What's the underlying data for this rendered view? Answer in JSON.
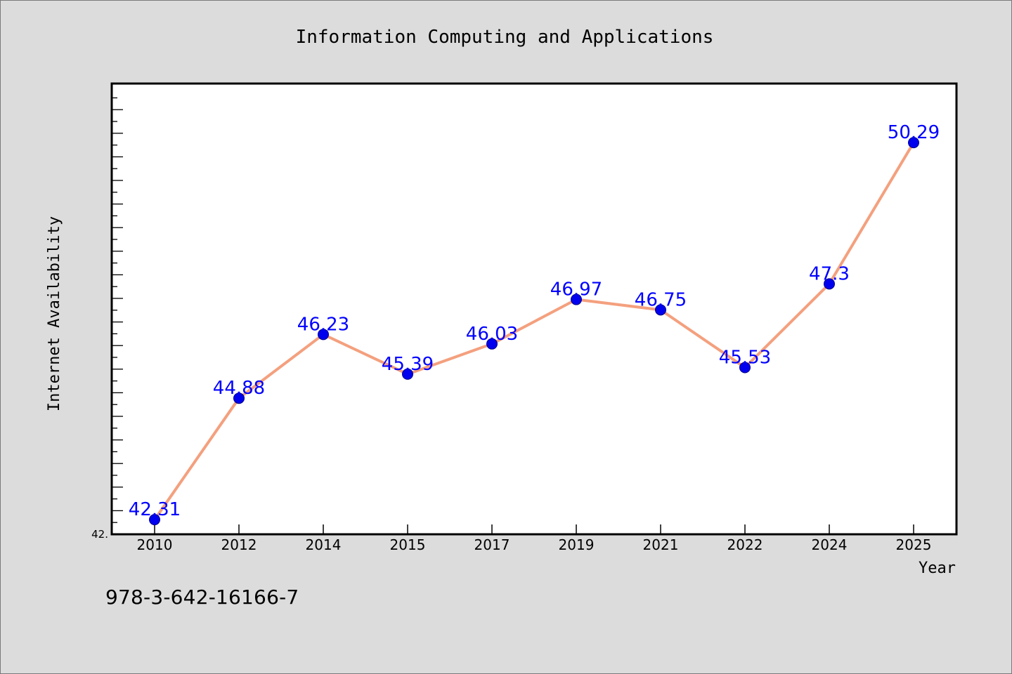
{
  "chart_data": {
    "type": "line",
    "title": "Information Computing and Applications",
    "xlabel": "Year",
    "ylabel": "Internet Availability",
    "categories": [
      "2010",
      "2012",
      "2014",
      "2015",
      "2017",
      "2019",
      "2021",
      "2022",
      "2024",
      "2025"
    ],
    "series": [
      {
        "values": [
          42.31,
          44.88,
          46.23,
          45.39,
          46.03,
          46.97,
          46.75,
          45.53,
          47.3,
          50.29
        ],
        "labels": [
          "42.31",
          "44.88",
          "46.23",
          "45.39",
          "46.03",
          "46.97",
          "46.75",
          "45.53",
          "47.3",
          "50.29"
        ],
        "line_color": "#f4a07e",
        "marker_color": "#0000ee",
        "label_color": "#0000ff"
      }
    ],
    "ylim": [
      42.0,
      51.54
    ],
    "y_tick_label": "42.",
    "grid": false
  },
  "footer": {
    "isbn": "978-3-642-16166-7"
  }
}
